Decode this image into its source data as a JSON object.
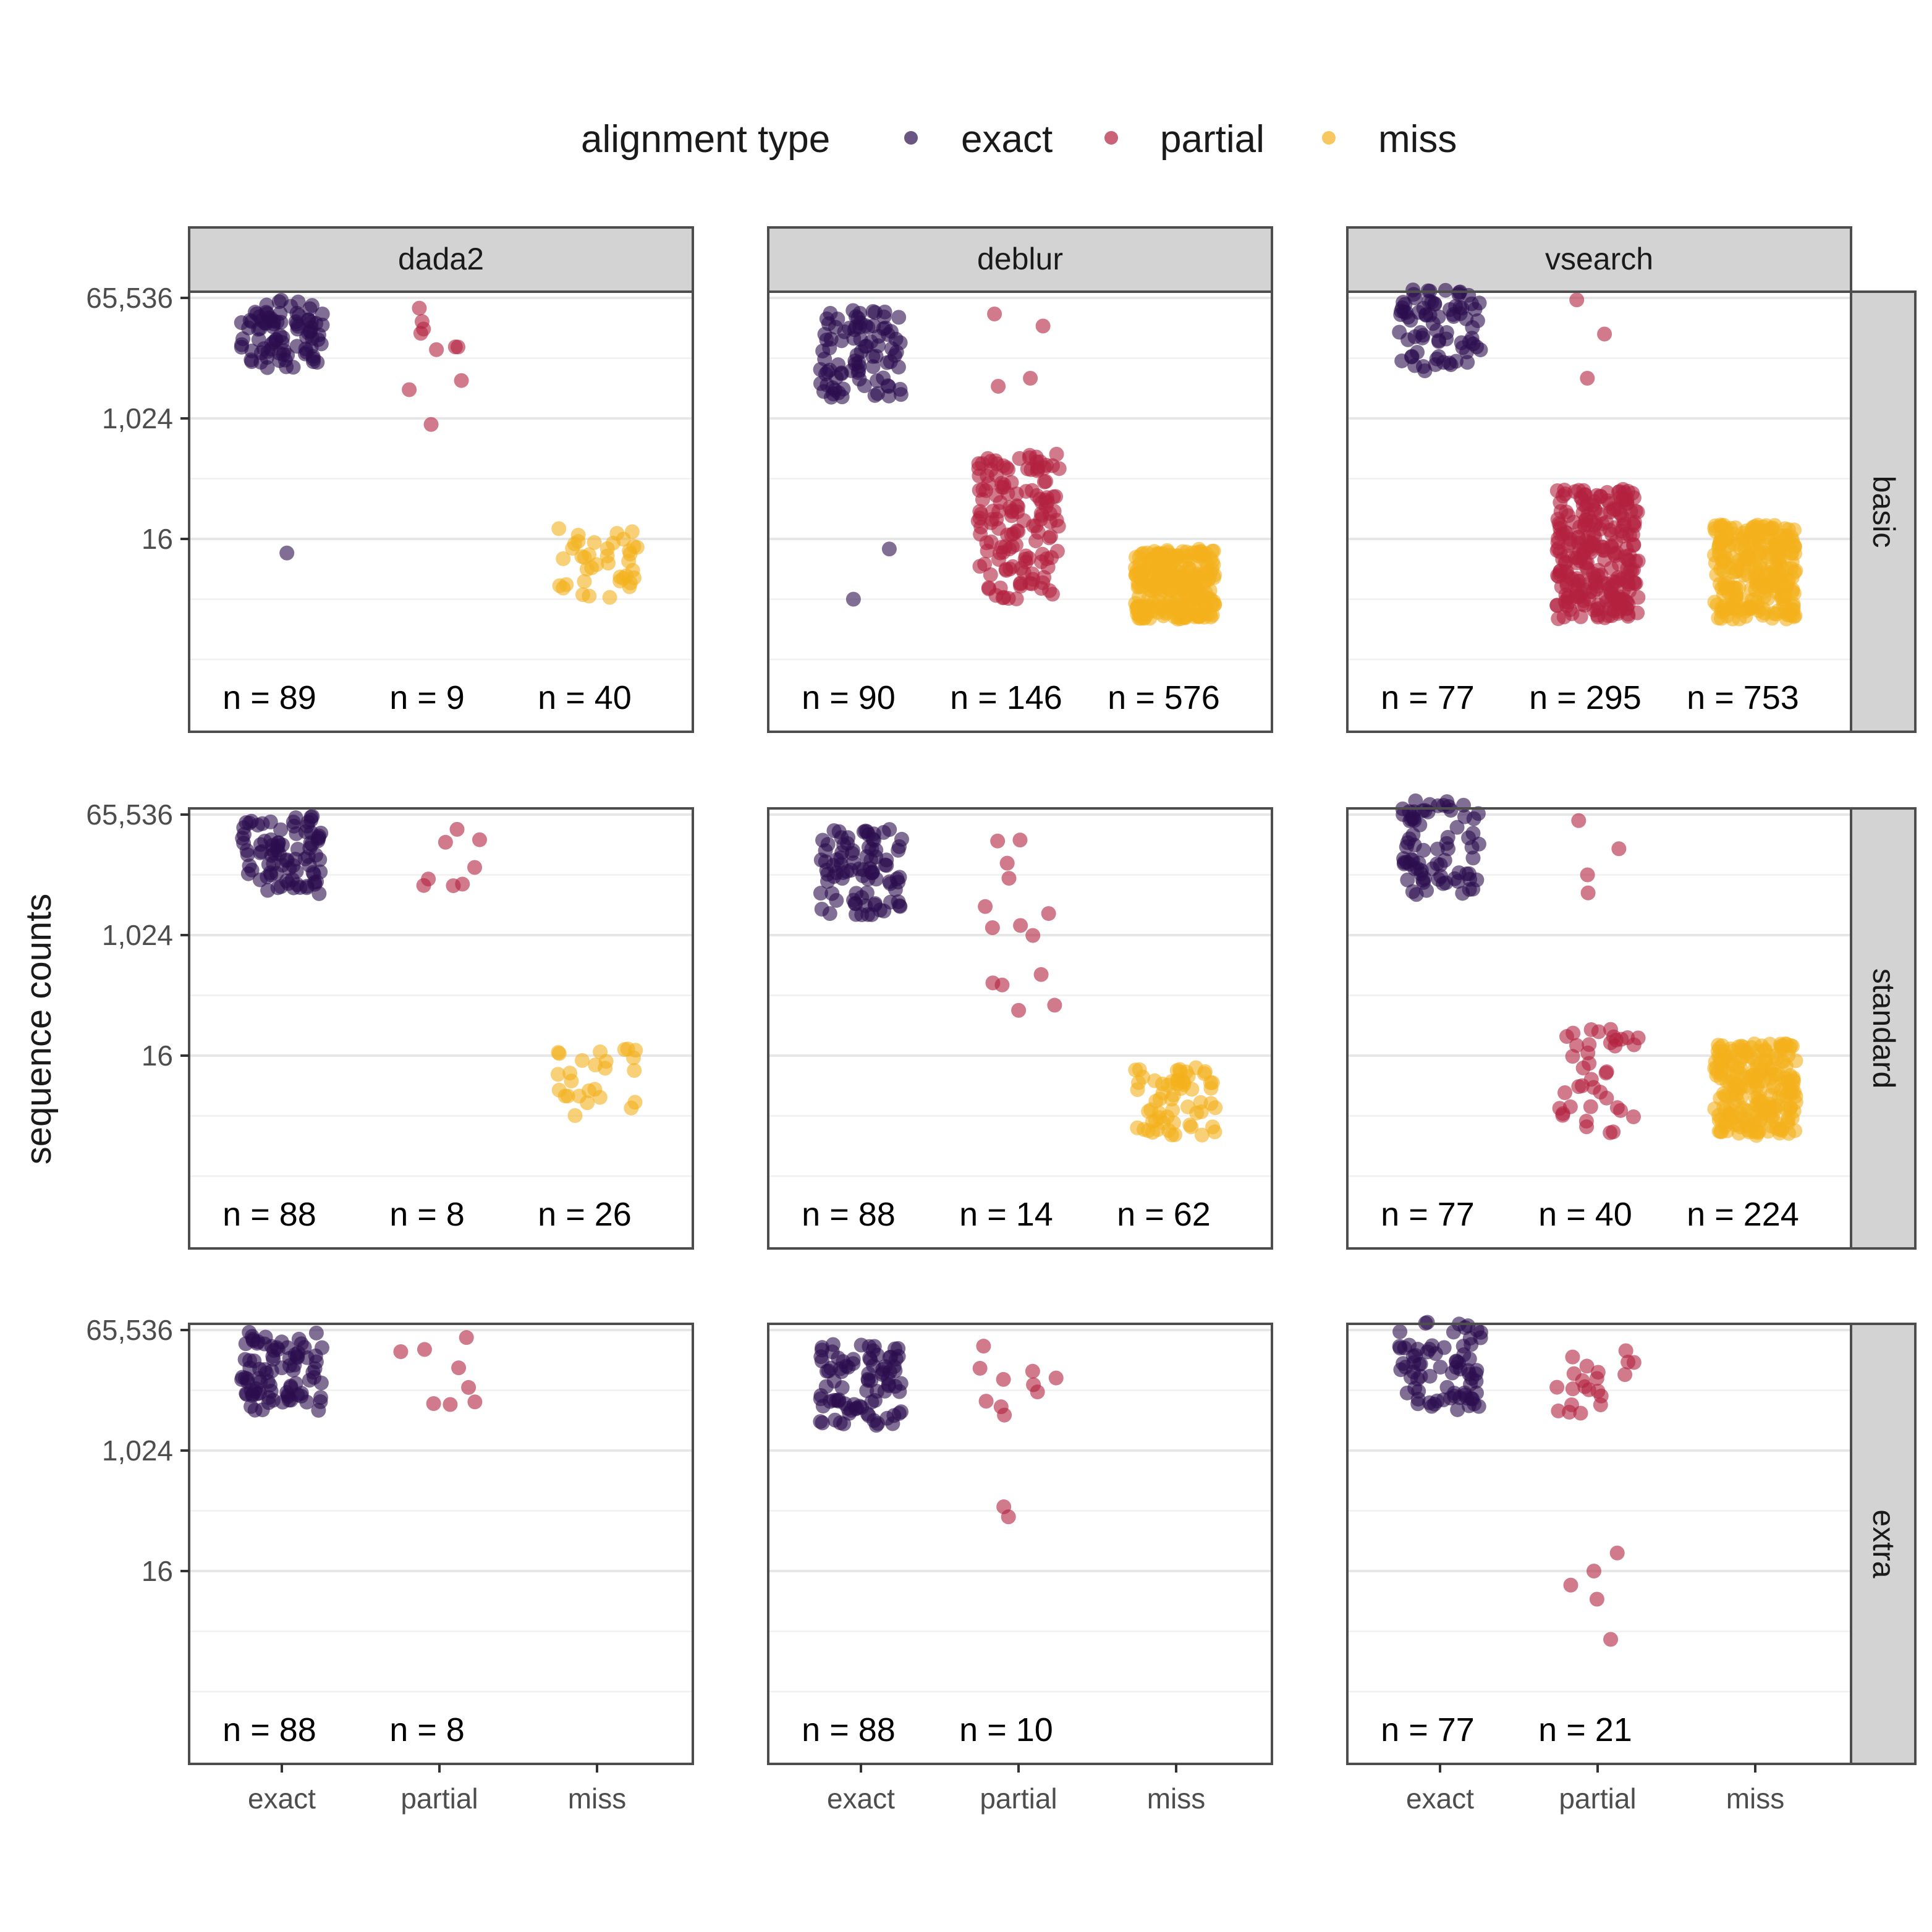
{
  "chart_data": {
    "type": "scatter",
    "ylabel": "sequence counts",
    "y_scale": "log2",
    "y_ticks": [
      "65,536",
      "1,024",
      "16"
    ],
    "x_categories": [
      "exact",
      "partial",
      "miss"
    ],
    "legend": {
      "title": "alignment type",
      "position": "top",
      "items": [
        {
          "name": "exact",
          "color": "#2b0e4e"
        },
        {
          "name": "partial",
          "color": "#b3213f"
        },
        {
          "name": "miss",
          "color": "#f4b01c"
        }
      ]
    },
    "columns": [
      "dada2",
      "deblur",
      "vsearch"
    ],
    "rows": [
      "basic",
      "standard",
      "extra"
    ],
    "grid": true,
    "panels": [
      {
        "column": "dada2",
        "row": "basic",
        "groups": [
          {
            "type": "exact",
            "n": 89,
            "n_label": "n = 89",
            "range_log2": [
              12.5,
              15.9
            ],
            "outliers_log2": [
              3.3
            ]
          },
          {
            "type": "partial",
            "n": 9,
            "n_label": "n = 9",
            "range_log2": [
              11.3,
              15.6
            ],
            "outliers_log2": [
              9.7
            ]
          },
          {
            "type": "miss",
            "n": 40,
            "n_label": "n = 40",
            "range_log2": [
              1.0,
              4.6
            ],
            "outliers_log2": []
          }
        ]
      },
      {
        "column": "deblur",
        "row": "basic",
        "groups": [
          {
            "type": "exact",
            "n": 90,
            "n_label": "n = 90",
            "range_log2": [
              11.0,
              15.4
            ],
            "outliers_log2": [
              3.5,
              1.0
            ]
          },
          {
            "type": "partial",
            "n": 146,
            "n_label": "n = 146",
            "range_log2": [
              1.0,
              8.3
            ],
            "outliers_log2": [
              11.6,
              12.0,
              14.6,
              15.2
            ]
          },
          {
            "type": "miss",
            "n": 576,
            "n_label": "n = 576",
            "range_log2": [
              0.0,
              3.5
            ],
            "outliers_log2": []
          }
        ]
      },
      {
        "column": "vsearch",
        "row": "basic",
        "groups": [
          {
            "type": "exact",
            "n": 77,
            "n_label": "n = 77",
            "range_log2": [
              12.3,
              16.4
            ],
            "outliers_log2": []
          },
          {
            "type": "partial",
            "n": 295,
            "n_label": "n = 295",
            "range_log2": [
              0.0,
              6.5
            ],
            "outliers_log2": [
              12.0,
              14.2,
              15.9
            ]
          },
          {
            "type": "miss",
            "n": 753,
            "n_label": "n = 753",
            "range_log2": [
              0.0,
              4.7
            ],
            "outliers_log2": []
          }
        ]
      },
      {
        "column": "dada2",
        "row": "standard",
        "groups": [
          {
            "type": "exact",
            "n": 88,
            "n_label": "n = 88",
            "range_log2": [
              12.0,
              16.0
            ],
            "outliers_log2": []
          },
          {
            "type": "partial",
            "n": 8,
            "n_label": "n = 8",
            "range_log2": [
              12.3,
              15.4
            ],
            "outliers_log2": []
          },
          {
            "type": "miss",
            "n": 26,
            "n_label": "n = 26",
            "range_log2": [
              1.0,
              4.6
            ],
            "outliers_log2": []
          }
        ]
      },
      {
        "column": "deblur",
        "row": "standard",
        "groups": [
          {
            "type": "exact",
            "n": 88,
            "n_label": "n = 88",
            "range_log2": [
              11.0,
              15.3
            ],
            "outliers_log2": []
          },
          {
            "type": "partial",
            "n": 14,
            "n_label": "n = 14",
            "range_log2": [
              1.0,
              14.8
            ],
            "outliers_log2": []
          },
          {
            "type": "miss",
            "n": 62,
            "n_label": "n = 62",
            "range_log2": [
              0.0,
              3.5
            ],
            "outliers_log2": []
          }
        ]
      },
      {
        "column": "vsearch",
        "row": "standard",
        "groups": [
          {
            "type": "exact",
            "n": 77,
            "n_label": "n = 77",
            "range_log2": [
              12.0,
              16.7
            ],
            "outliers_log2": []
          },
          {
            "type": "partial",
            "n": 40,
            "n_label": "n = 40",
            "range_log2": [
              0.0,
              5.5
            ],
            "outliers_log2": [
              12.1,
              13.0,
              14.3,
              15.7
            ]
          },
          {
            "type": "miss",
            "n": 224,
            "n_label": "n = 224",
            "range_log2": [
              0.0,
              4.6
            ],
            "outliers_log2": []
          }
        ]
      },
      {
        "column": "dada2",
        "row": "extra",
        "groups": [
          {
            "type": "exact",
            "n": 88,
            "n_label": "n = 88",
            "range_log2": [
              12.0,
              15.9
            ],
            "outliers_log2": []
          },
          {
            "type": "partial",
            "n": 8,
            "n_label": "n = 8",
            "range_log2": [
              12.2,
              15.8
            ],
            "outliers_log2": []
          },
          {
            "type": "miss",
            "n": 0,
            "n_label": "",
            "range_log2": null,
            "outliers_log2": []
          }
        ]
      },
      {
        "column": "deblur",
        "row": "extra",
        "groups": [
          {
            "type": "exact",
            "n": 88,
            "n_label": "n = 88",
            "range_log2": [
              11.2,
              15.4
            ],
            "outliers_log2": []
          },
          {
            "type": "partial",
            "n": 10,
            "n_label": "n = 10",
            "range_log2": [
              11.6,
              15.2
            ],
            "outliers_log2": [
              6.7,
              7.2
            ]
          },
          {
            "type": "miss",
            "n": 0,
            "n_label": "",
            "range_log2": null,
            "outliers_log2": []
          }
        ]
      },
      {
        "column": "vsearch",
        "row": "extra",
        "groups": [
          {
            "type": "exact",
            "n": 77,
            "n_label": "n = 77",
            "range_log2": [
              12.0,
              16.4
            ],
            "outliers_log2": []
          },
          {
            "type": "partial",
            "n": 21,
            "n_label": "n = 21",
            "range_log2": [
              11.8,
              15.8
            ],
            "outliers_log2": [
              0.6,
              2.6,
              3.3,
              4.0,
              4.9
            ]
          },
          {
            "type": "miss",
            "n": 0,
            "n_label": "",
            "range_log2": null,
            "outliers_log2": []
          }
        ]
      }
    ]
  }
}
